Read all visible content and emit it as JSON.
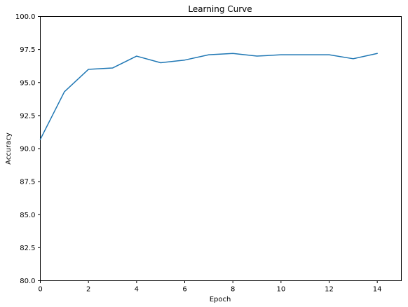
{
  "chart_data": {
    "type": "line",
    "title": "Learning Curve",
    "xlabel": "Epoch",
    "ylabel": "Accuracy",
    "xlim": [
      0,
      15
    ],
    "ylim": [
      80,
      100
    ],
    "xticks": [
      0,
      2,
      4,
      6,
      8,
      10,
      12,
      14
    ],
    "xtick_labels": [
      "0",
      "2",
      "4",
      "6",
      "8",
      "10",
      "12",
      "14"
    ],
    "yticks": [
      80,
      82.5,
      85,
      87.5,
      90,
      92.5,
      95,
      97.5,
      100
    ],
    "ytick_labels": [
      "80.0",
      "82.5",
      "85.0",
      "87.5",
      "90.0",
      "92.5",
      "95.0",
      "97.5",
      "100.0"
    ],
    "grid": false,
    "series": [
      {
        "color": "#1f77b4",
        "x": [
          0,
          1,
          2,
          3,
          4,
          5,
          6,
          7,
          8,
          9,
          10,
          11,
          12,
          13,
          14
        ],
        "y": [
          90.7,
          94.3,
          96.0,
          96.1,
          97.0,
          96.5,
          96.7,
          97.1,
          97.2,
          97.0,
          97.1,
          97.1,
          97.1,
          96.8,
          97.2
        ]
      }
    ]
  }
}
